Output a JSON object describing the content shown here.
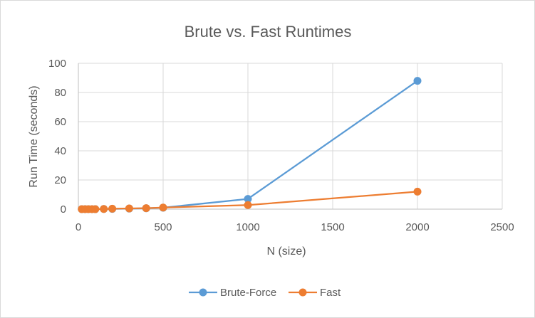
{
  "chart_data": {
    "type": "scatter",
    "title": "Brute vs. Fast Runtimes",
    "xlabel": "N (size)",
    "ylabel": "Run Time (seconds)",
    "xlim": [
      0,
      2500
    ],
    "ylim": [
      0,
      100
    ],
    "x_ticks": [
      "0",
      "500",
      "1000",
      "1500",
      "2000",
      "2500"
    ],
    "y_ticks": [
      "0",
      "20",
      "40",
      "60",
      "80",
      "100"
    ],
    "grid": true,
    "legend_position": "bottom",
    "series": [
      {
        "name": "Brute-Force",
        "color": "#5b9bd5",
        "points": [
          {
            "x": 20,
            "y": 0.0
          },
          {
            "x": 40,
            "y": 0.0
          },
          {
            "x": 60,
            "y": 0.0
          },
          {
            "x": 80,
            "y": 0.0
          },
          {
            "x": 100,
            "y": 0.0
          },
          {
            "x": 150,
            "y": 0.1
          },
          {
            "x": 200,
            "y": 0.2
          },
          {
            "x": 300,
            "y": 0.4
          },
          {
            "x": 400,
            "y": 0.6
          },
          {
            "x": 500,
            "y": 1.0
          },
          {
            "x": 1000,
            "y": 7.0
          },
          {
            "x": 2000,
            "y": 88.0
          }
        ]
      },
      {
        "name": "Fast",
        "color": "#ed7d31",
        "points": [
          {
            "x": 20,
            "y": 0.0
          },
          {
            "x": 40,
            "y": 0.0
          },
          {
            "x": 60,
            "y": 0.0
          },
          {
            "x": 80,
            "y": 0.0
          },
          {
            "x": 100,
            "y": 0.0
          },
          {
            "x": 150,
            "y": 0.1
          },
          {
            "x": 200,
            "y": 0.3
          },
          {
            "x": 300,
            "y": 0.5
          },
          {
            "x": 400,
            "y": 0.7
          },
          {
            "x": 500,
            "y": 1.1
          },
          {
            "x": 1000,
            "y": 2.8
          },
          {
            "x": 2000,
            "y": 12.0
          }
        ]
      }
    ]
  }
}
